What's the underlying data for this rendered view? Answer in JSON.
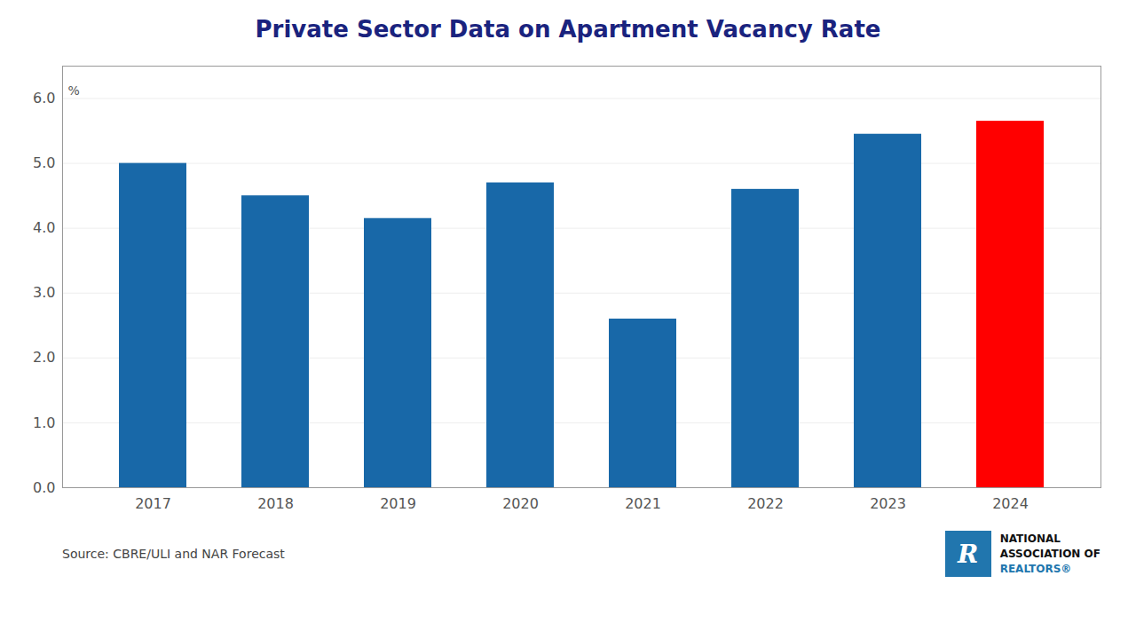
{
  "chart_data": {
    "type": "bar",
    "title": "Private Sector Data on Apartment Vacancy Rate",
    "categories": [
      "2017",
      "2018",
      "2019",
      "2020",
      "2021",
      "2022",
      "2023",
      "2024"
    ],
    "values": [
      5.0,
      4.5,
      4.15,
      4.7,
      2.6,
      4.6,
      5.45,
      5.65
    ],
    "colors": [
      "#1868a8",
      "#1868a8",
      "#1868a8",
      "#1868a8",
      "#1868a8",
      "#1868a8",
      "#1868a8",
      "#ff0000"
    ],
    "ylim": [
      0,
      6.5
    ],
    "yticks": [
      0,
      1,
      2,
      3,
      4,
      5,
      6
    ],
    "grid": true,
    "title_color": "#1a237e",
    "annotations": [
      {
        "text": "%",
        "y": 6
      }
    ],
    "source": "Source: CBRE/ULI and NAR Forecast",
    "logo": {
      "texts": [
        "R",
        "NATIONAL",
        "ASSOCIATION OF",
        "REALTORS®"
      ],
      "color": "#2176ae"
    }
  }
}
